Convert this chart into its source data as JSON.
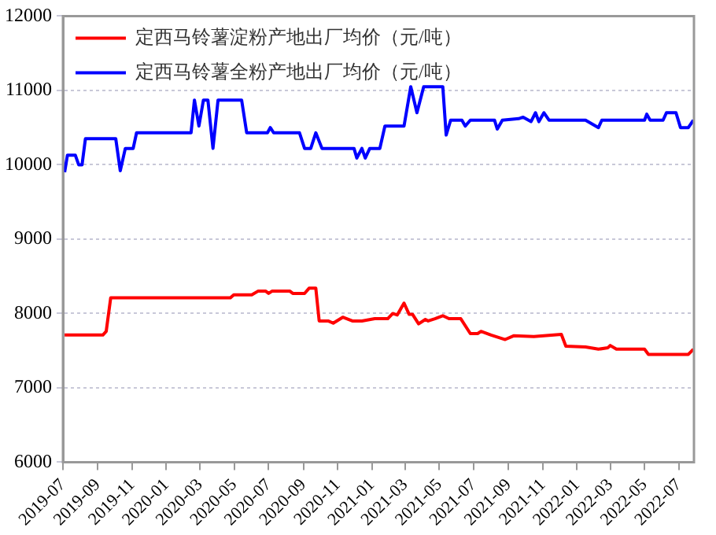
{
  "chart_data": {
    "type": "line",
    "legend": "top left",
    "grid": "y",
    "line_style": "solid",
    "marker": "none",
    "xlim": [
      "2019-07-01",
      "2022-07-28"
    ],
    "xticks": [
      "2019-07",
      "2019-09",
      "2019-11",
      "2020-01",
      "2020-03",
      "2020-05",
      "2020-07",
      "2020-09",
      "2020-11",
      "2021-01",
      "2021-03",
      "2021-05",
      "2021-07",
      "2021-09",
      "2021-11",
      "2022-01",
      "2022-03",
      "2022-05",
      "2022-07"
    ],
    "ylim": [
      6000,
      12000
    ],
    "yticks": [
      6000,
      7000,
      8000,
      9000,
      10000,
      11000,
      12000
    ],
    "series": [
      {
        "name": "定西马铃薯淀粉产地出厂均价（元/吨）",
        "color": "#ff0000",
        "x": [
          "2019-07-04",
          "2019-09-10",
          "2019-09-16",
          "2019-09-24",
          "2020-04-24",
          "2020-04-30",
          "2020-06-01",
          "2020-06-12",
          "2020-06-26",
          "2020-07-01",
          "2020-07-07",
          "2020-08-08",
          "2020-08-13",
          "2020-09-03",
          "2020-09-11",
          "2020-09-23",
          "2020-09-29",
          "2020-10-15",
          "2020-10-24",
          "2020-11-10",
          "2020-11-27",
          "2020-12-14",
          "2021-01-06",
          "2021-01-29",
          "2021-02-07",
          "2021-02-15",
          "2021-02-27",
          "2021-03-08",
          "2021-03-14",
          "2021-03-25",
          "2021-04-06",
          "2021-04-11",
          "2021-04-23",
          "2021-05-07",
          "2021-05-18",
          "2021-06-08",
          "2021-06-25",
          "2021-07-08",
          "2021-07-14",
          "2021-08-01",
          "2021-08-26",
          "2021-09-10",
          "2021-10-16",
          "2021-12-04",
          "2021-12-12",
          "2022-01-16",
          "2022-02-08",
          "2022-02-25",
          "2022-03-01",
          "2022-03-12",
          "2022-05-01",
          "2022-05-08",
          "2022-07-18",
          "2022-07-27"
        ],
        "values": [
          7710,
          7710,
          7760,
          8210,
          8210,
          8250,
          8250,
          8300,
          8300,
          8270,
          8300,
          8300,
          8270,
          8270,
          8340,
          8340,
          7900,
          7900,
          7870,
          7950,
          7900,
          7900,
          7930,
          7930,
          8000,
          7980,
          8140,
          7990,
          7990,
          7860,
          7920,
          7900,
          7930,
          7970,
          7930,
          7930,
          7730,
          7730,
          7760,
          7710,
          7650,
          7700,
          7690,
          7720,
          7560,
          7550,
          7520,
          7540,
          7570,
          7520,
          7520,
          7450,
          7450,
          7520
        ]
      },
      {
        "name": "定西马铃薯全粉产地出厂均价（元/吨）",
        "color": "#0000ff",
        "x": [
          "2019-07-04",
          "2019-07-09",
          "2019-07-23",
          "2019-07-29",
          "2019-08-04",
          "2019-08-10",
          "2019-10-03",
          "2019-10-11",
          "2019-10-20",
          "2019-11-03",
          "2019-11-09",
          "2020-02-14",
          "2020-02-20",
          "2020-02-28",
          "2020-03-07",
          "2020-03-15",
          "2020-03-24",
          "2020-04-02",
          "2020-05-14",
          "2020-05-23",
          "2020-06-29",
          "2020-07-04",
          "2020-07-10",
          "2020-08-25",
          "2020-09-03",
          "2020-09-14",
          "2020-09-23",
          "2020-10-04",
          "2020-11-30",
          "2020-12-05",
          "2020-12-14",
          "2020-12-20",
          "2020-12-28",
          "2021-01-15",
          "2021-01-24",
          "2021-02-27",
          "2021-03-11",
          "2021-03-22",
          "2021-04-03",
          "2021-05-07",
          "2021-05-13",
          "2021-05-21",
          "2021-06-10",
          "2021-06-16",
          "2021-06-25",
          "2021-08-07",
          "2021-08-12",
          "2021-08-21",
          "2021-09-19",
          "2021-09-27",
          "2021-10-11",
          "2021-10-19",
          "2021-10-25",
          "2021-11-03",
          "2021-11-12",
          "2022-01-16",
          "2022-02-08",
          "2022-02-14",
          "2022-05-01",
          "2022-05-05",
          "2022-05-11",
          "2022-06-03",
          "2022-06-09",
          "2022-06-26",
          "2022-07-04",
          "2022-07-18",
          "2022-07-27"
        ],
        "values": [
          9900,
          10130,
          10130,
          10000,
          10000,
          10350,
          10350,
          9920,
          10220,
          10220,
          10430,
          10430,
          10870,
          10520,
          10870,
          10870,
          10220,
          10870,
          10870,
          10430,
          10430,
          10500,
          10430,
          10430,
          10220,
          10220,
          10430,
          10220,
          10220,
          10090,
          10220,
          10090,
          10220,
          10220,
          10520,
          10520,
          11050,
          10700,
          11050,
          11050,
          10400,
          10600,
          10600,
          10520,
          10600,
          10600,
          10480,
          10600,
          10620,
          10640,
          10580,
          10700,
          10580,
          10700,
          10600,
          10600,
          10500,
          10600,
          10600,
          10680,
          10600,
          10600,
          10700,
          10700,
          10500,
          10500,
          10600
        ]
      }
    ]
  }
}
